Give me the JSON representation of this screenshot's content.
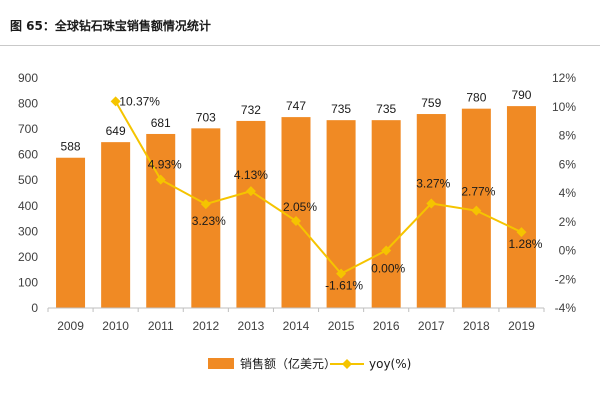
{
  "chart_data": {
    "type": "bar",
    "title": "图 65：全球钻石珠宝销售额情况统计",
    "categories": [
      "2009",
      "2010",
      "2011",
      "2012",
      "2013",
      "2014",
      "2015",
      "2016",
      "2017",
      "2018",
      "2019"
    ],
    "series": [
      {
        "name": "销售额（亿美元）",
        "type": "bar",
        "axis": "left",
        "values": [
          588,
          649,
          681,
          703,
          732,
          747,
          735,
          735,
          759,
          780,
          790
        ],
        "labels": [
          "588",
          "649",
          "681",
          "703",
          "732",
          "747",
          "735",
          "735",
          "759",
          "780",
          "790"
        ]
      },
      {
        "name": "yoy(%)",
        "type": "line",
        "axis": "right",
        "values": [
          null,
          10.37,
          4.93,
          3.23,
          4.13,
          2.05,
          -1.61,
          0.0,
          3.27,
          2.77,
          1.28
        ],
        "labels": [
          "",
          "10.37%",
          "4.93%",
          "3.23%",
          "4.13%",
          "2.05%",
          "-1.61%",
          "0.00%",
          "3.27%",
          "2.77%",
          "1.28%"
        ]
      }
    ],
    "y_left": {
      "ylim": [
        0,
        900
      ],
      "ticks": [
        "0",
        "100",
        "200",
        "300",
        "400",
        "500",
        "600",
        "700",
        "800",
        "900"
      ]
    },
    "y_right": {
      "ylim": [
        -4,
        12
      ],
      "ticks": [
        "-4%",
        "-2%",
        "0%",
        "2%",
        "4%",
        "6%",
        "8%",
        "10%",
        "12%"
      ]
    },
    "grid": false,
    "legend_position": "bottom",
    "colors": {
      "bar": "#f08a24",
      "line": "#f5c400",
      "axis": "#bfbfbf",
      "text": "#404040"
    }
  }
}
